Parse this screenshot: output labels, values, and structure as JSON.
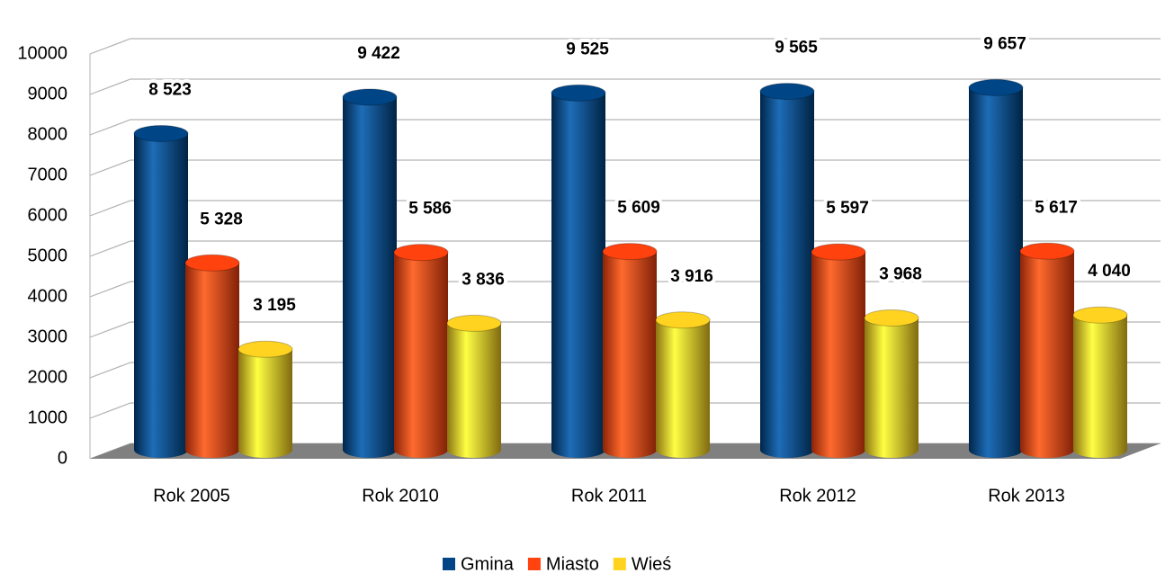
{
  "chart_data": {
    "type": "bar3d",
    "categories": [
      "Rok 2005",
      "Rok 2010",
      "Rok 2011",
      "Rok 2012",
      "Rok 2013"
    ],
    "series": [
      {
        "name": "Gmina",
        "color": "#004586",
        "values": [
          8523,
          9422,
          9525,
          9565,
          9657
        ],
        "value_labels": [
          "8 523",
          "9 422",
          "9 525",
          "9 565",
          "9 657"
        ]
      },
      {
        "name": "Miasto",
        "color": "#ff420e",
        "values": [
          5328,
          5586,
          5609,
          5597,
          5617
        ],
        "value_labels": [
          "5 328",
          "5 586",
          "5 609",
          "5 597",
          "5 617"
        ]
      },
      {
        "name": "Wieś",
        "color": "#ffd320",
        "values": [
          3195,
          3836,
          3916,
          3968,
          4040
        ],
        "value_labels": [
          "3 195",
          "3 836",
          "3 916",
          "3 968",
          "4 040"
        ]
      }
    ],
    "ylim": [
      0,
      10000
    ],
    "yticks": [
      0,
      1000,
      2000,
      3000,
      4000,
      5000,
      6000,
      7000,
      8000,
      9000,
      10000
    ],
    "grid": true,
    "legend": "bottom"
  }
}
